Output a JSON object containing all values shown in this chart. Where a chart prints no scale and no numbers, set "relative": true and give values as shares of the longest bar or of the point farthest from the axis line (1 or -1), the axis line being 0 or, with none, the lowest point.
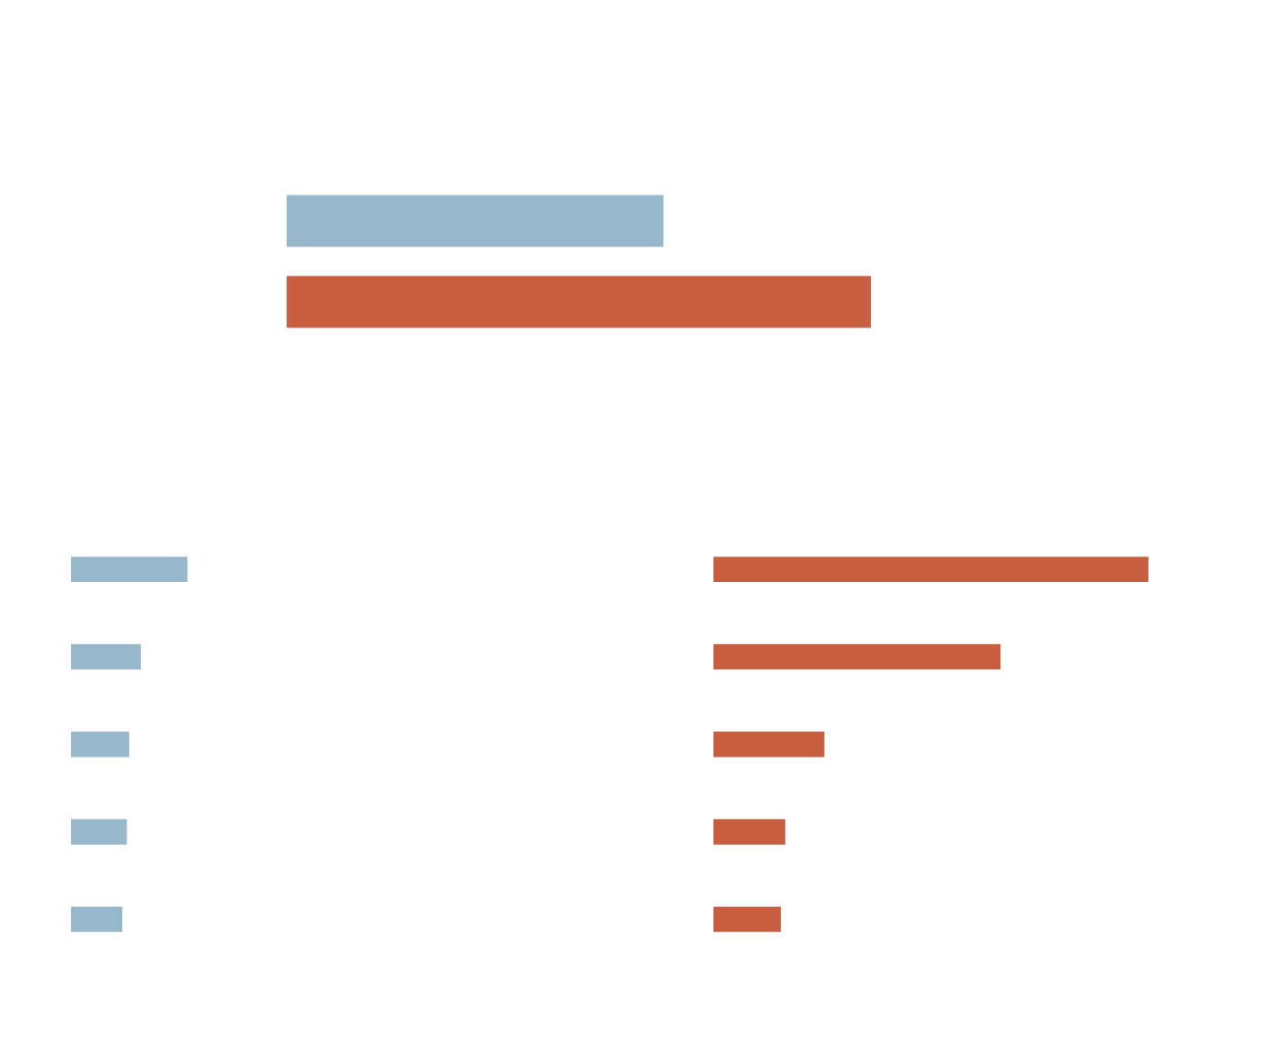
{
  "chart_data": [
    {
      "type": "bar",
      "orientation": "horizontal",
      "relative": true,
      "categories": [
        null,
        null
      ],
      "values": [
        0.645,
        1
      ],
      "colors": [
        "#97b7ca",
        "#c95f41"
      ]
    },
    {
      "type": "bar",
      "orientation": "horizontal",
      "relative": true,
      "categories": [
        null,
        null,
        null,
        null,
        null
      ],
      "values": [
        1,
        0.6,
        0.5,
        0.48,
        0.44
      ],
      "colors": [
        "#97b7ca",
        "#97b7ca",
        "#97b7ca",
        "#97b7ca",
        "#97b7ca"
      ]
    },
    {
      "type": "bar",
      "orientation": "horizontal",
      "relative": true,
      "categories": [
        null,
        null,
        null,
        null,
        null
      ],
      "values": [
        1,
        0.66,
        0.255,
        0.165,
        0.155
      ],
      "colors": [
        "#c95f41",
        "#c95f41",
        "#c95f41",
        "#c95f41",
        "#c95f41"
      ]
    }
  ]
}
